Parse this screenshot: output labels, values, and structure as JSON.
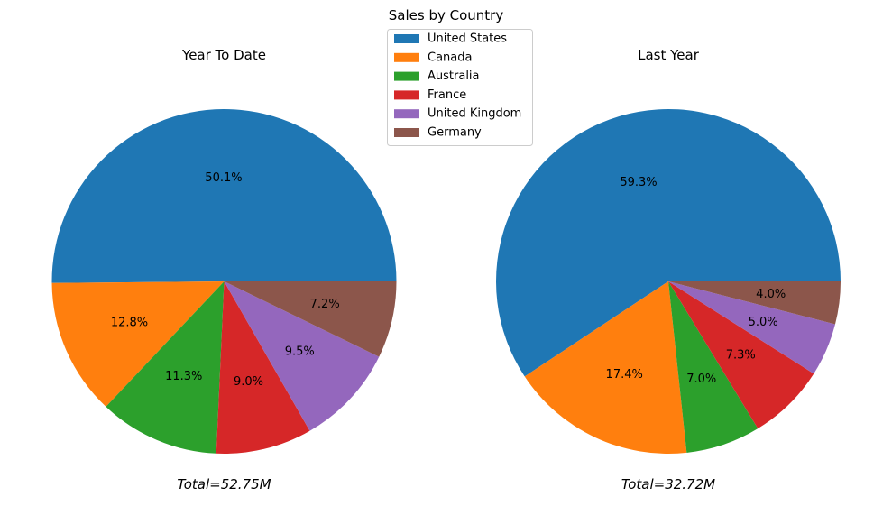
{
  "chart_data": {
    "type": "pie",
    "title": "Sales by Country",
    "legend_position": "top-center",
    "categories": [
      "United States",
      "Canada",
      "Australia",
      "France",
      "United Kingdom",
      "Germany"
    ],
    "colors": [
      "#1f77b4",
      "#ff7f0e",
      "#2ca02c",
      "#d62728",
      "#9467bd",
      "#8c564b"
    ],
    "pies": [
      {
        "title": "Year To Date",
        "values": [
          50.1,
          12.8,
          11.3,
          9.0,
          9.5,
          7.2
        ],
        "labels": [
          "50.1%",
          "12.8%",
          "11.3%",
          "9.0%",
          "9.5%",
          "7.2%"
        ],
        "total_label": "Total=52.75M"
      },
      {
        "title": "Last Year",
        "values": [
          59.3,
          17.4,
          7.0,
          7.3,
          5.0,
          4.0
        ],
        "labels": [
          "59.3%",
          "17.4%",
          "7.0%",
          "7.3%",
          "5.0%",
          "4.0%"
        ],
        "total_label": "Total=32.72M"
      }
    ]
  }
}
